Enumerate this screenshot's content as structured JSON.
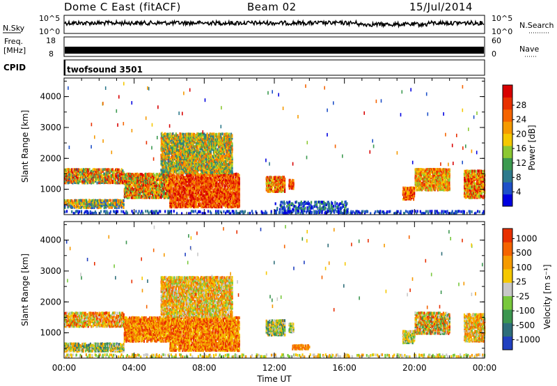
{
  "header": {
    "title": "Dome C East (fitACF)",
    "beam": "Beam 02",
    "date": "15/Jul/2014"
  },
  "summary_panels": {
    "nsky": {
      "label": "N.Sky",
      "ticks": [
        "10^5",
        "10^0"
      ]
    },
    "nsearch": {
      "label": "N.Search",
      "ticks": [
        "10^5",
        "10^0"
      ]
    },
    "freq": {
      "label_line1": "Freq.",
      "label_line2": "[MHz]",
      "ticks": [
        "18",
        "8"
      ]
    },
    "nave": {
      "label": "Nave",
      "ticks": [
        "60",
        "0"
      ]
    },
    "cpid": {
      "label": "CPID",
      "value": "twofsound 3501"
    }
  },
  "chart_data": [
    {
      "type": "heatmap",
      "name": "power",
      "ylabel": "Slant Range [km]",
      "xlabel": "",
      "ylim": [
        180,
        4600
      ],
      "yticks": [
        "1000",
        "2000",
        "3000",
        "4000"
      ],
      "colorbar": {
        "label": "Power [dB]",
        "ticks": [
          "4",
          "8",
          "12",
          "16",
          "20",
          "24",
          "28"
        ],
        "colors": [
          "#0000e0",
          "#1e50c8",
          "#2e7a8c",
          "#3c9a50",
          "#8cc832",
          "#f5c800",
          "#f59a00",
          "#f56400",
          "#e83000",
          "#d80000"
        ]
      },
      "regions": [
        {
          "t": [
            0.0,
            3.4
          ],
          "r": [
            1180,
            1650
          ],
          "lvl": [
            2,
            9
          ]
        },
        {
          "t": [
            0.0,
            3.4
          ],
          "r": [
            380,
            650
          ],
          "lvl": [
            1,
            7
          ]
        },
        {
          "t": [
            3.4,
            6.0
          ],
          "r": [
            700,
            1500
          ],
          "lvl": [
            3,
            9
          ]
        },
        {
          "t": [
            6.0,
            10.0
          ],
          "r": [
            400,
            1500
          ],
          "lvl": [
            6,
            9
          ]
        },
        {
          "t": [
            5.5,
            9.6
          ],
          "r": [
            1500,
            2800
          ],
          "lvl": [
            2,
            7
          ]
        },
        {
          "t": [
            11.5,
            12.6
          ],
          "r": [
            900,
            1400
          ],
          "lvl": [
            4,
            9
          ]
        },
        {
          "t": [
            12.8,
            13.1
          ],
          "r": [
            1000,
            1300
          ],
          "lvl": [
            6,
            9
          ]
        },
        {
          "t": [
            19.3,
            20.0
          ],
          "r": [
            650,
            1050
          ],
          "lvl": [
            5,
            9
          ]
        },
        {
          "t": [
            20.0,
            22.0
          ],
          "r": [
            950,
            1650
          ],
          "lvl": [
            4,
            8
          ]
        },
        {
          "t": [
            22.8,
            24.0
          ],
          "r": [
            700,
            1600
          ],
          "lvl": [
            4,
            9
          ]
        },
        {
          "t": [
            12.0,
            16.2
          ],
          "r": [
            220,
            600
          ],
          "lvl": [
            0,
            3
          ]
        },
        {
          "t": [
            0.0,
            24.0
          ],
          "r": [
            190,
            300
          ],
          "lvl": [
            0,
            2
          ]
        }
      ]
    },
    {
      "type": "heatmap",
      "name": "velocity",
      "ylabel": "Slant Range [km]",
      "xlabel": "Time UT",
      "ylim": [
        180,
        4600
      ],
      "yticks": [
        "1000",
        "2000",
        "3000",
        "4000"
      ],
      "xticks": [
        "00:00",
        "04:00",
        "08:00",
        "12:00",
        "16:00",
        "20:00",
        "00:00"
      ],
      "colorbar": {
        "label": "Velocity [m s⁻¹]",
        "ticks": [
          "1000",
          "500",
          "100",
          "25",
          "-25",
          "-100",
          "-500",
          "-1000"
        ],
        "colors": [
          "#2040c0",
          "#2e6e7a",
          "#3c9650",
          "#78c83c",
          "#c8c8c8",
          "#f5c800",
          "#f59a00",
          "#f56400",
          "#e83000"
        ]
      },
      "regions": [
        {
          "t": [
            0.0,
            3.4
          ],
          "r": [
            1180,
            1650
          ],
          "lvl": [
            3,
            8
          ]
        },
        {
          "t": [
            0.0,
            3.4
          ],
          "r": [
            380,
            650
          ],
          "lvl": [
            1,
            6
          ]
        },
        {
          "t": [
            3.4,
            6.0
          ],
          "r": [
            700,
            1500
          ],
          "lvl": [
            5,
            8
          ]
        },
        {
          "t": [
            6.0,
            10.0
          ],
          "r": [
            400,
            1500
          ],
          "lvl": [
            5,
            8
          ]
        },
        {
          "t": [
            5.5,
            9.6
          ],
          "r": [
            1500,
            2800
          ],
          "lvl": [
            3,
            7
          ]
        },
        {
          "t": [
            11.5,
            12.6
          ],
          "r": [
            900,
            1400
          ],
          "lvl": [
            1,
            6
          ]
        },
        {
          "t": [
            12.8,
            13.1
          ],
          "r": [
            1000,
            1300
          ],
          "lvl": [
            2,
            5
          ]
        },
        {
          "t": [
            13.0,
            14.0
          ],
          "r": [
            450,
            600
          ],
          "lvl": [
            6,
            7
          ]
        },
        {
          "t": [
            19.3,
            20.0
          ],
          "r": [
            650,
            1050
          ],
          "lvl": [
            2,
            6
          ]
        },
        {
          "t": [
            20.0,
            22.0
          ],
          "r": [
            950,
            1650
          ],
          "lvl": [
            2,
            8
          ]
        },
        {
          "t": [
            22.8,
            24.0
          ],
          "r": [
            700,
            1600
          ],
          "lvl": [
            3,
            7
          ]
        },
        {
          "t": [
            0.0,
            24.0
          ],
          "r": [
            190,
            300
          ],
          "lvl": [
            3,
            6
          ]
        }
      ]
    }
  ]
}
